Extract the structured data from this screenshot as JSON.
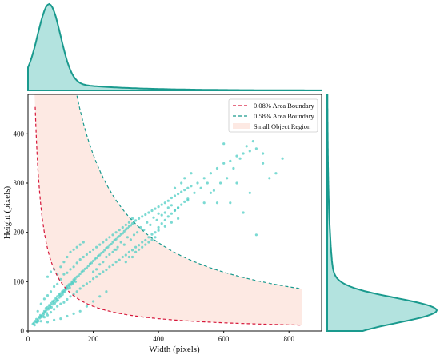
{
  "chart_data": {
    "type": "scatter",
    "xlabel": "Width (pixels)",
    "ylabel": "Height (pixels)",
    "xlim": [
      0,
      900
    ],
    "ylim": [
      0,
      480
    ],
    "xticks": [
      0,
      200,
      400,
      600,
      800
    ],
    "yticks": [
      0,
      100,
      200,
      300,
      400
    ],
    "grid": false,
    "legend_position": "top-right",
    "series": [
      {
        "name": "0.08% Area Boundary",
        "kind": "dashed-curve",
        "color": "#d6173a",
        "area_px2": 10000
      },
      {
        "name": "0.58% Area Boundary",
        "kind": "dashed-curve",
        "color": "#1a9a8e",
        "area_px2": 71600
      },
      {
        "name": "Small Object Region",
        "kind": "filled-region",
        "color": "#fde9e3"
      }
    ],
    "scatter_color": "#4fcdc4",
    "scatter_points": [
      [
        20,
        12
      ],
      [
        25,
        18
      ],
      [
        30,
        22
      ],
      [
        34,
        28
      ],
      [
        40,
        30
      ],
      [
        45,
        36
      ],
      [
        50,
        40
      ],
      [
        55,
        46
      ],
      [
        60,
        48
      ],
      [
        65,
        52
      ],
      [
        70,
        56
      ],
      [
        75,
        60
      ],
      [
        80,
        62
      ],
      [
        85,
        66
      ],
      [
        90,
        70
      ],
      [
        95,
        74
      ],
      [
        100,
        76
      ],
      [
        105,
        80
      ],
      [
        110,
        82
      ],
      [
        115,
        86
      ],
      [
        120,
        90
      ],
      [
        125,
        94
      ],
      [
        130,
        96
      ],
      [
        135,
        100
      ],
      [
        140,
        104
      ],
      [
        145,
        106
      ],
      [
        150,
        110
      ],
      [
        155,
        112
      ],
      [
        160,
        116
      ],
      [
        165,
        120
      ],
      [
        170,
        122
      ],
      [
        175,
        126
      ],
      [
        180,
        128
      ],
      [
        185,
        132
      ],
      [
        190,
        136
      ],
      [
        195,
        138
      ],
      [
        200,
        142
      ],
      [
        205,
        146
      ],
      [
        210,
        148
      ],
      [
        215,
        152
      ],
      [
        220,
        154
      ],
      [
        225,
        158
      ],
      [
        230,
        160
      ],
      [
        235,
        164
      ],
      [
        240,
        168
      ],
      [
        245,
        170
      ],
      [
        250,
        174
      ],
      [
        255,
        176
      ],
      [
        260,
        180
      ],
      [
        265,
        184
      ],
      [
        270,
        186
      ],
      [
        275,
        190
      ],
      [
        280,
        192
      ],
      [
        285,
        196
      ],
      [
        290,
        198
      ],
      [
        295,
        202
      ],
      [
        300,
        206
      ],
      [
        305,
        208
      ],
      [
        310,
        212
      ],
      [
        315,
        214
      ],
      [
        320,
        218
      ],
      [
        325,
        220
      ],
      [
        330,
        224
      ],
      [
        340,
        228
      ],
      [
        350,
        232
      ],
      [
        360,
        236
      ],
      [
        370,
        240
      ],
      [
        380,
        244
      ],
      [
        390,
        248
      ],
      [
        400,
        252
      ],
      [
        410,
        256
      ],
      [
        420,
        260
      ],
      [
        430,
        264
      ],
      [
        440,
        270
      ],
      [
        450,
        274
      ],
      [
        460,
        278
      ],
      [
        470,
        282
      ],
      [
        480,
        286
      ],
      [
        490,
        290
      ],
      [
        500,
        294
      ],
      [
        30,
        40
      ],
      [
        40,
        55
      ],
      [
        50,
        65
      ],
      [
        60,
        72
      ],
      [
        70,
        80
      ],
      [
        80,
        90
      ],
      [
        90,
        95
      ],
      [
        100,
        105
      ],
      [
        110,
        115
      ],
      [
        120,
        118
      ],
      [
        130,
        125
      ],
      [
        140,
        130
      ],
      [
        150,
        138
      ],
      [
        160,
        145
      ],
      [
        170,
        150
      ],
      [
        180,
        155
      ],
      [
        190,
        160
      ],
      [
        200,
        165
      ],
      [
        210,
        170
      ],
      [
        220,
        175
      ],
      [
        230,
        180
      ],
      [
        240,
        185
      ],
      [
        250,
        190
      ],
      [
        260,
        195
      ],
      [
        270,
        200
      ],
      [
        280,
        205
      ],
      [
        290,
        210
      ],
      [
        300,
        215
      ],
      [
        310,
        220
      ],
      [
        320,
        228
      ],
      [
        40,
        20
      ],
      [
        50,
        28
      ],
      [
        60,
        32
      ],
      [
        70,
        38
      ],
      [
        80,
        44
      ],
      [
        90,
        50
      ],
      [
        100,
        55
      ],
      [
        110,
        58
      ],
      [
        120,
        64
      ],
      [
        130,
        70
      ],
      [
        140,
        74
      ],
      [
        150,
        80
      ],
      [
        160,
        86
      ],
      [
        170,
        92
      ],
      [
        180,
        96
      ],
      [
        190,
        100
      ],
      [
        200,
        106
      ],
      [
        210,
        110
      ],
      [
        220,
        116
      ],
      [
        230,
        120
      ],
      [
        240,
        124
      ],
      [
        250,
        130
      ],
      [
        260,
        134
      ],
      [
        270,
        140
      ],
      [
        280,
        144
      ],
      [
        290,
        150
      ],
      [
        300,
        154
      ],
      [
        310,
        160
      ],
      [
        320,
        164
      ],
      [
        330,
        170
      ],
      [
        340,
        174
      ],
      [
        350,
        180
      ],
      [
        360,
        184
      ],
      [
        370,
        190
      ],
      [
        380,
        196
      ],
      [
        390,
        200
      ],
      [
        400,
        204
      ],
      [
        420,
        212
      ],
      [
        440,
        220
      ],
      [
        460,
        228
      ],
      [
        15,
        14
      ],
      [
        18,
        16
      ],
      [
        22,
        20
      ],
      [
        26,
        24
      ],
      [
        28,
        18
      ],
      [
        32,
        20
      ],
      [
        36,
        26
      ],
      [
        38,
        32
      ],
      [
        42,
        28
      ],
      [
        46,
        30
      ],
      [
        48,
        34
      ],
      [
        52,
        38
      ],
      [
        56,
        42
      ],
      [
        58,
        36
      ],
      [
        62,
        44
      ],
      [
        66,
        46
      ],
      [
        68,
        50
      ],
      [
        72,
        48
      ],
      [
        76,
        54
      ],
      [
        78,
        58
      ],
      [
        82,
        56
      ],
      [
        86,
        60
      ],
      [
        88,
        64
      ],
      [
        92,
        62
      ],
      [
        96,
        68
      ],
      [
        98,
        72
      ],
      [
        102,
        70
      ],
      [
        106,
        74
      ],
      [
        108,
        78
      ],
      [
        112,
        80
      ],
      [
        116,
        84
      ],
      [
        118,
        88
      ],
      [
        122,
        86
      ],
      [
        126,
        92
      ],
      [
        128,
        88
      ],
      [
        132,
        94
      ],
      [
        136,
        98
      ],
      [
        138,
        96
      ],
      [
        142,
        102
      ],
      [
        146,
        100
      ],
      [
        520,
        300
      ],
      [
        540,
        310
      ],
      [
        560,
        320
      ],
      [
        580,
        330
      ],
      [
        600,
        340
      ],
      [
        620,
        345
      ],
      [
        640,
        355
      ],
      [
        660,
        360
      ],
      [
        680,
        365
      ],
      [
        700,
        370
      ],
      [
        540,
        260
      ],
      [
        560,
        280
      ],
      [
        590,
        300
      ],
      [
        610,
        310
      ],
      [
        630,
        330
      ],
      [
        650,
        350
      ],
      [
        670,
        375
      ],
      [
        690,
        385
      ],
      [
        720,
        360
      ],
      [
        600,
        380
      ],
      [
        450,
        290
      ],
      [
        470,
        300
      ],
      [
        480,
        310
      ],
      [
        500,
        320
      ],
      [
        510,
        280
      ],
      [
        530,
        290
      ],
      [
        550,
        300
      ],
      [
        570,
        285
      ],
      [
        460,
        250
      ],
      [
        490,
        265
      ],
      [
        420,
        240
      ],
      [
        430,
        250
      ],
      [
        440,
        255
      ],
      [
        450,
        245
      ],
      [
        410,
        235
      ],
      [
        400,
        238
      ],
      [
        395,
        225
      ],
      [
        385,
        230
      ],
      [
        375,
        215
      ],
      [
        365,
        220
      ],
      [
        355,
        205
      ],
      [
        345,
        210
      ],
      [
        335,
        200
      ],
      [
        325,
        195
      ],
      [
        315,
        185
      ],
      [
        305,
        190
      ],
      [
        295,
        175
      ],
      [
        285,
        180
      ],
      [
        275,
        170
      ],
      [
        265,
        165
      ],
      [
        60,
        110
      ],
      [
        70,
        120
      ],
      [
        80,
        125
      ],
      [
        90,
        115
      ],
      [
        100,
        130
      ],
      [
        110,
        140
      ],
      [
        120,
        150
      ],
      [
        130,
        160
      ],
      [
        140,
        165
      ],
      [
        150,
        170
      ],
      [
        160,
        175
      ],
      [
        170,
        180
      ],
      [
        200,
        120
      ],
      [
        210,
        125
      ],
      [
        220,
        135
      ],
      [
        230,
        140
      ],
      [
        240,
        150
      ],
      [
        250,
        155
      ],
      [
        260,
        160
      ],
      [
        270,
        165
      ],
      [
        700,
        195
      ],
      [
        680,
        280
      ],
      [
        640,
        300
      ],
      [
        580,
        260
      ],
      [
        620,
        260
      ],
      [
        660,
        240
      ],
      [
        720,
        340
      ],
      [
        740,
        310
      ],
      [
        760,
        320
      ],
      [
        780,
        350
      ],
      [
        300,
        140
      ],
      [
        310,
        150
      ],
      [
        320,
        150
      ],
      [
        330,
        160
      ],
      [
        340,
        165
      ],
      [
        350,
        170
      ],
      [
        360,
        175
      ],
      [
        370,
        180
      ],
      [
        380,
        185
      ],
      [
        390,
        190
      ],
      [
        200,
        60
      ],
      [
        220,
        70
      ],
      [
        240,
        80
      ],
      [
        180,
        50
      ],
      [
        160,
        40
      ],
      [
        140,
        35
      ],
      [
        120,
        30
      ],
      [
        100,
        25
      ],
      [
        80,
        22
      ],
      [
        60,
        18
      ],
      [
        400,
        210
      ],
      [
        410,
        218
      ],
      [
        420,
        225
      ],
      [
        430,
        232
      ],
      [
        440,
        238
      ],
      [
        450,
        244
      ],
      [
        460,
        250
      ],
      [
        470,
        256
      ],
      [
        480,
        262
      ],
      [
        490,
        268
      ]
    ],
    "width_density": {
      "peak_x": 65,
      "bandwidth": 35,
      "tail_decay": 180
    },
    "height_density": {
      "peak_y": 42,
      "bandwidth": 25,
      "tail_decay": 110
    }
  }
}
